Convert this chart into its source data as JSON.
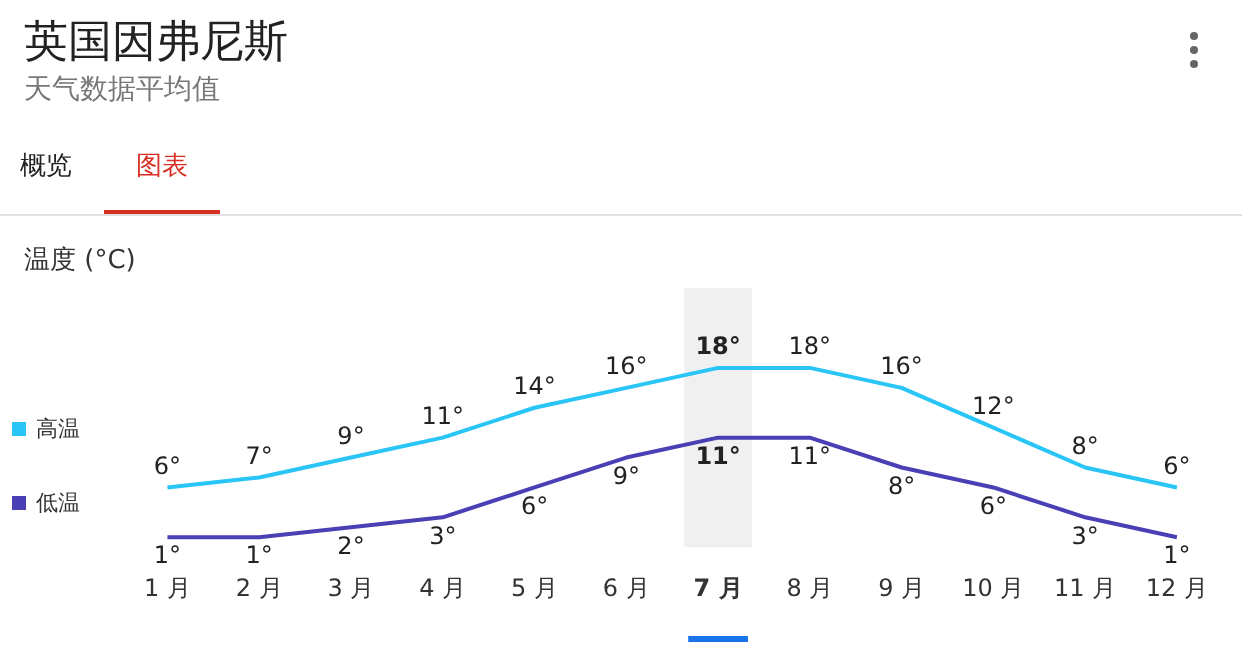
{
  "chart_data": {
    "type": "line",
    "title": "英国因弗尼斯",
    "subtitle": "天气数据平均值",
    "ylabel": "温度 (°C)",
    "annotations": [
      "概览",
      "图表"
    ],
    "categories": [
      "1 月",
      "2 月",
      "3 月",
      "4 月",
      "5 月",
      "6 月",
      "7 月",
      "8 月",
      "9 月",
      "10 月",
      "11 月",
      "12 月"
    ],
    "series": [
      {
        "name": "高温",
        "color": "#29c5f6",
        "values": [
          6,
          7,
          9,
          11,
          14,
          16,
          18,
          18,
          16,
          12,
          8,
          6
        ],
        "value_labels": [
          "6°",
          "7°",
          "9°",
          "11°",
          "14°",
          "16°",
          "18°",
          "18°",
          "16°",
          "12°",
          "8°",
          "6°"
        ]
      },
      {
        "name": "低温",
        "color": "#4a3fb5",
        "values": [
          1,
          1,
          2,
          3,
          6,
          9,
          11,
          11,
          8,
          6,
          3,
          1
        ],
        "value_labels": [
          "1°",
          "1°",
          "2°",
          "3°",
          "6°",
          "9°",
          "11°",
          "11°",
          "8°",
          "6°",
          "3°",
          "1°"
        ]
      }
    ],
    "bands": [
      {
        "axis": "x",
        "from": "7 月",
        "to": "7 月",
        "color": "#f0f0f0"
      }
    ],
    "legend": "left",
    "grid": false,
    "marker": "none",
    "line_style": "solid"
  }
}
